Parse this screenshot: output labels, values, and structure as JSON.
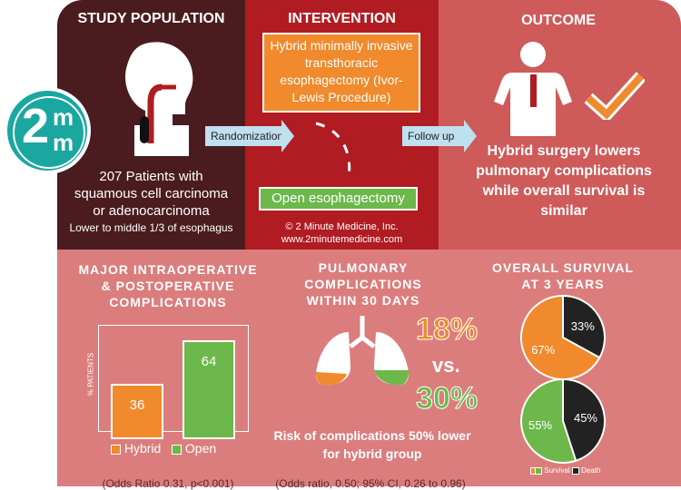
{
  "logo": {
    "text_top": "m",
    "text_big": "2",
    "text_bottom": "m"
  },
  "study": {
    "title": "STUDY POPULATION",
    "line1": "207 Patients with",
    "line2": "squamous cell carcinoma",
    "line3": "or adenocarcinoma",
    "line4": "Lower to middle 1/3 of esophagus"
  },
  "intervention": {
    "title": "INTERVENTION",
    "hybrid_box": "Hybrid minimally invasive transthoracic esophagectomy (Ivor-Lewis Procedure)",
    "open_box": "Open esophagectomy",
    "copyright": "© 2 Minute Medicine, Inc.",
    "website": "www.2minutemedicine.com"
  },
  "arrows": {
    "randomization": "Randomization",
    "follow_up": "Follow up"
  },
  "outcome": {
    "title": "OUTCOME",
    "text": "Hybrid surgery lowers pulmonary complications while overall survival is similar"
  },
  "complications": {
    "title": "MAJOR INTRAOPERATIVE & POSTOPERATIVE COMPLICATIONS",
    "ylabel": "% PATIENTS",
    "legend_hybrid": "Hybrid",
    "legend_open": "Open",
    "footnote": "(Odds Ratio 0.31, p<0.001)"
  },
  "pulmonary": {
    "title": "PULMONARY COMPLICATIONS WITHIN 30 DAYS",
    "hybrid_pct": "18%",
    "vs": "vs.",
    "open_pct": "30%",
    "risk_text": "Risk of complications 50% lower for hybrid group",
    "footnote": "(Odds ratio, 0.50; 95% CI, 0.26 to 0.96)"
  },
  "survival": {
    "title": "OVERALL SURVIVAL AT 3 YEARS",
    "legend_survival": "Survival",
    "legend_death": "Death"
  },
  "colors": {
    "hybrid": "#f08a2c",
    "open": "#6cb84a",
    "death": "#222222",
    "study_bg": "#4a1c1f",
    "interv_bg": "#b01c22",
    "outcome_bg": "#cf5a5a",
    "bottom_bg": "#dc7d7d",
    "logo": "#1aa7a0"
  },
  "chart_data": [
    {
      "type": "bar",
      "title": "MAJOR INTRAOPERATIVE & POSTOPERATIVE COMPLICATIONS",
      "ylabel": "% PATIENTS",
      "categories": [
        "Hybrid",
        "Open"
      ],
      "values": [
        36,
        64
      ],
      "ylim": [
        0,
        100
      ]
    },
    {
      "type": "pie",
      "title": "OVERALL SURVIVAL AT 3 YEARS",
      "name": "Hybrid",
      "labels": [
        "Survival",
        "Death"
      ],
      "values": [
        67,
        33
      ]
    },
    {
      "type": "pie",
      "title": "OVERALL SURVIVAL AT 3 YEARS",
      "name": "Open",
      "labels": [
        "Survival",
        "Death"
      ],
      "values": [
        55,
        45
      ]
    }
  ]
}
